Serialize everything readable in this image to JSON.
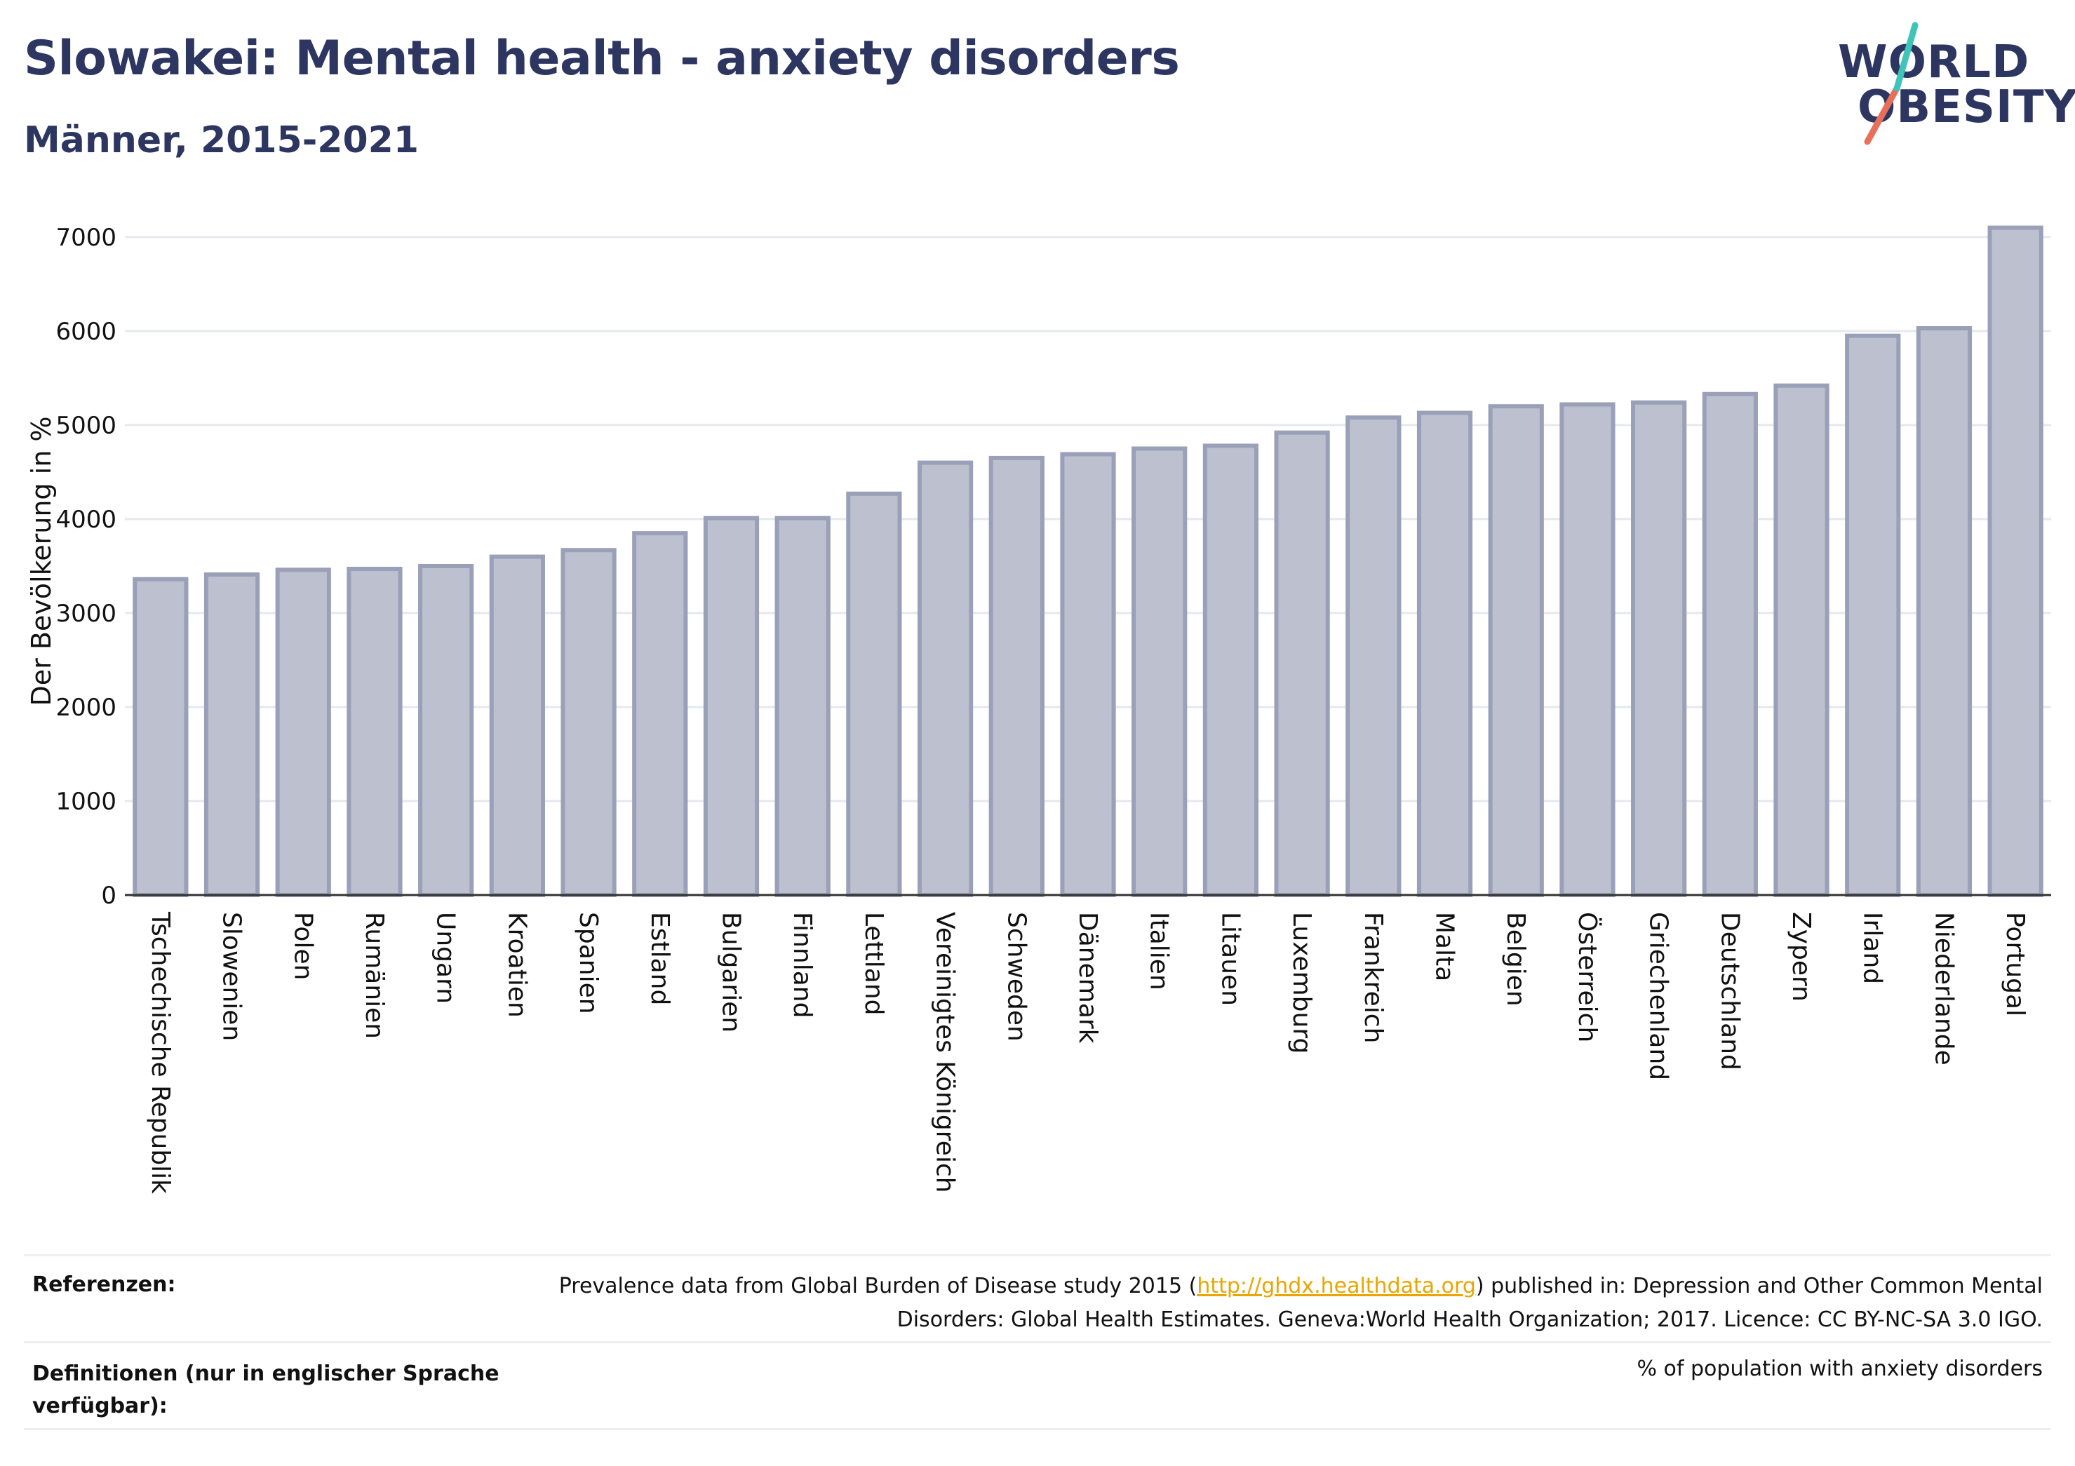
{
  "header": {
    "title": "Slowakei: Mental health - anxiety disorders",
    "subtitle": "Männer, 2015-2021"
  },
  "logo": {
    "line1": "WORLD",
    "line2": "OBESITY",
    "brand_color": "#2d3561",
    "slash_colors": [
      "#3ec4b8",
      "#e8705a"
    ]
  },
  "colors": {
    "bar_fill": "#bcc0cf",
    "bar_stroke": "#9aa0b8",
    "grid": "#e6e8ee",
    "axis": "#333333",
    "text": "#111111"
  },
  "chart_data": {
    "type": "bar",
    "ylabel": "Der Bevölkerung in %",
    "ylim": [
      0,
      7000
    ],
    "yticks": [
      0,
      1000,
      2000,
      3000,
      4000,
      5000,
      6000,
      7000
    ],
    "grid": true,
    "categories": [
      "Tschechische Republik",
      "Slowenien",
      "Polen",
      "Rumänien",
      "Ungarn",
      "Kroatien",
      "Spanien",
      "Estland",
      "Bulgarien",
      "Finnland",
      "Lettland",
      "Vereinigtes Königreich",
      "Schweden",
      "Dänemark",
      "Italien",
      "Litauen",
      "Luxemburg",
      "Frankreich",
      "Malta",
      "Belgien",
      "Österreich",
      "Griechenland",
      "Deutschland",
      "Zypern",
      "Irland",
      "Niederlande",
      "Portugal"
    ],
    "values": [
      3360,
      3410,
      3460,
      3470,
      3500,
      3600,
      3670,
      3850,
      4010,
      4010,
      4270,
      4600,
      4650,
      4690,
      4750,
      4780,
      4920,
      5080,
      5130,
      5200,
      5220,
      5240,
      5330,
      5420,
      5950,
      6030,
      7100
    ]
  },
  "footer": {
    "references_label": "Referenzen:",
    "references_text_before": "Prevalence data from Global Burden of Disease study 2015 (",
    "references_link": "http://ghdx.healthdata.org",
    "references_text_after": ") published in: Depression and Other Common Mental Disorders: Global Health Estimates. Geneva:World Health Organization; 2017. Licence: CC BY-NC-SA 3.0 IGO.",
    "definitions_label": "Definitionen (nur in englischer Sprache verfügbar):",
    "definitions_text": "% of population with anxiety disorders"
  }
}
